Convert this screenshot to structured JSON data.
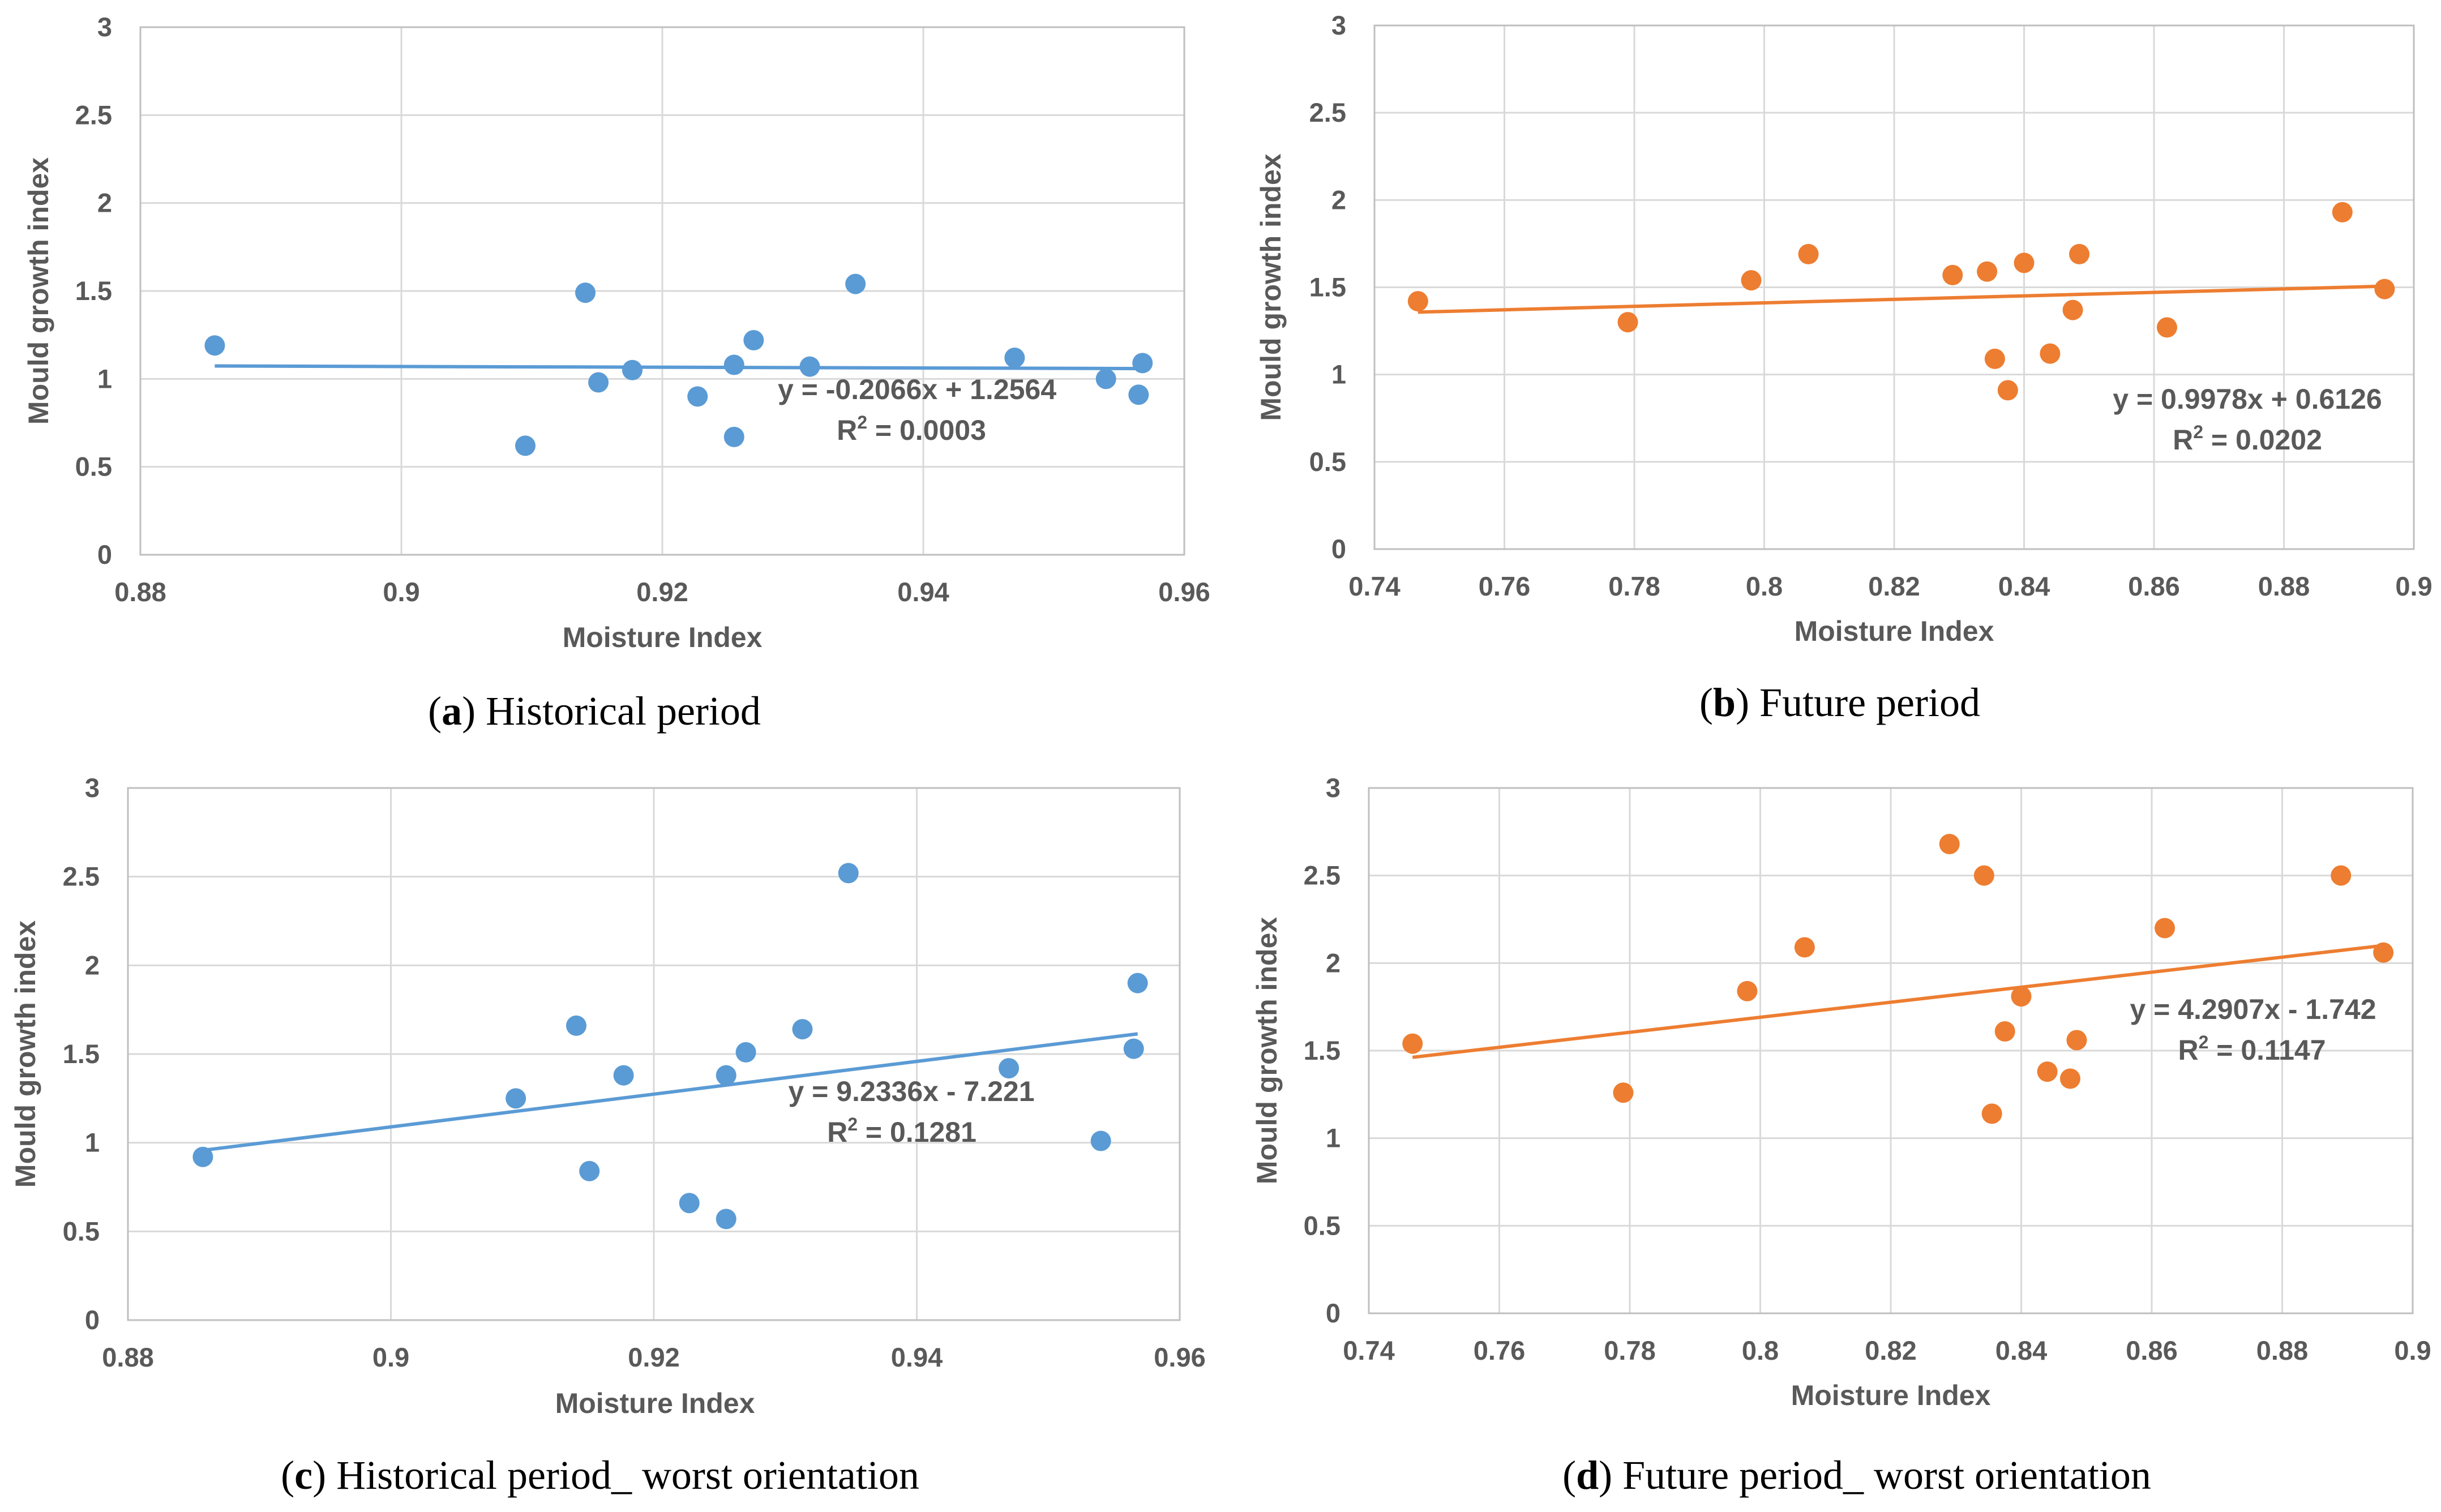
{
  "chart_data": [
    {
      "type": "scatter",
      "panel_id": "a",
      "caption_letter": "a",
      "caption_text": "Historical period",
      "xlabel": "Moisture Index",
      "ylabel": "Mould growth index",
      "xlim": [
        0.88,
        0.96
      ],
      "ylim": [
        0,
        3
      ],
      "xticks": [
        "0.88",
        "0.9",
        "0.92",
        "0.94",
        "0.96"
      ],
      "yticks": [
        "0",
        "0.5",
        "1",
        "1.5",
        "2",
        "2.5",
        "3"
      ],
      "grid": true,
      "color": "#5b9bd5",
      "points": [
        {
          "x": 0.8857,
          "y": 1.19
        },
        {
          "x": 0.9095,
          "y": 0.62
        },
        {
          "x": 0.9141,
          "y": 1.49
        },
        {
          "x": 0.9151,
          "y": 0.98
        },
        {
          "x": 0.9177,
          "y": 1.05
        },
        {
          "x": 0.9227,
          "y": 0.9
        },
        {
          "x": 0.9255,
          "y": 1.08
        },
        {
          "x": 0.9255,
          "y": 0.67
        },
        {
          "x": 0.927,
          "y": 1.22
        },
        {
          "x": 0.9313,
          "y": 1.07
        },
        {
          "x": 0.9348,
          "y": 1.54
        },
        {
          "x": 0.947,
          "y": 1.12
        },
        {
          "x": 0.954,
          "y": 1.0
        },
        {
          "x": 0.9565,
          "y": 0.91
        },
        {
          "x": 0.9568,
          "y": 1.09
        }
      ],
      "trendline": {
        "slope": -0.2066,
        "intercept": 1.2564,
        "x_from": 0.8857,
        "x_to": 0.9568
      },
      "equation": "y = -0.2066x + 1.2564",
      "r2_prefix": "R",
      "r2_sup": "2",
      "r2_value": " = 0.0003"
    },
    {
      "type": "scatter",
      "panel_id": "b",
      "caption_letter": "b",
      "caption_text": "Future period",
      "xlabel": "Moisture Index",
      "ylabel": "Mould growth index",
      "xlim": [
        0.74,
        0.9
      ],
      "ylim": [
        0,
        3
      ],
      "xticks": [
        "0.74",
        "0.76",
        "0.78",
        "0.8",
        "0.82",
        "0.84",
        "0.86",
        "0.88",
        "0.9"
      ],
      "yticks": [
        "0",
        "0.5",
        "1",
        "1.5",
        "2",
        "2.5",
        "3"
      ],
      "grid": true,
      "color": "#ed7d31",
      "points": [
        {
          "x": 0.7467,
          "y": 1.42
        },
        {
          "x": 0.779,
          "y": 1.3
        },
        {
          "x": 0.798,
          "y": 1.54
        },
        {
          "x": 0.8068,
          "y": 1.69
        },
        {
          "x": 0.829,
          "y": 1.57
        },
        {
          "x": 0.8343,
          "y": 1.59
        },
        {
          "x": 0.8355,
          "y": 1.09
        },
        {
          "x": 0.8375,
          "y": 0.91
        },
        {
          "x": 0.84,
          "y": 1.64
        },
        {
          "x": 0.844,
          "y": 1.12
        },
        {
          "x": 0.8475,
          "y": 1.37
        },
        {
          "x": 0.8485,
          "y": 1.69
        },
        {
          "x": 0.862,
          "y": 1.27
        },
        {
          "x": 0.889,
          "y": 1.93
        },
        {
          "x": 0.8955,
          "y": 1.49
        }
      ],
      "trendline": {
        "slope": 0.9978,
        "intercept": 0.6126,
        "x_from": 0.7467,
        "x_to": 0.8955
      },
      "equation": "y = 0.9978x + 0.6126",
      "r2_prefix": "R",
      "r2_sup": "2",
      "r2_value": " = 0.0202"
    },
    {
      "type": "scatter",
      "panel_id": "c",
      "caption_letter": "c",
      "caption_text": "Historical period_ worst orientation",
      "xlabel": "Moisture Index",
      "ylabel": "Mould growth index",
      "xlim": [
        0.88,
        0.96
      ],
      "ylim": [
        0,
        3
      ],
      "xticks": [
        "0.88",
        "0.9",
        "0.92",
        "0.94",
        "0.96"
      ],
      "yticks": [
        "0",
        "0.5",
        "1",
        "1.5",
        "2",
        "2.5",
        "3"
      ],
      "grid": true,
      "color": "#5b9bd5",
      "points": [
        {
          "x": 0.8857,
          "y": 0.92
        },
        {
          "x": 0.9095,
          "y": 1.25
        },
        {
          "x": 0.9141,
          "y": 1.66
        },
        {
          "x": 0.9151,
          "y": 0.84
        },
        {
          "x": 0.9177,
          "y": 1.38
        },
        {
          "x": 0.9227,
          "y": 0.66
        },
        {
          "x": 0.9255,
          "y": 1.38
        },
        {
          "x": 0.9255,
          "y": 0.57
        },
        {
          "x": 0.927,
          "y": 1.51
        },
        {
          "x": 0.9313,
          "y": 1.64
        },
        {
          "x": 0.9348,
          "y": 2.52
        },
        {
          "x": 0.947,
          "y": 1.42
        },
        {
          "x": 0.954,
          "y": 1.01
        },
        {
          "x": 0.9565,
          "y": 1.53
        },
        {
          "x": 0.9568,
          "y": 1.9
        }
      ],
      "trendline": {
        "slope": 9.2336,
        "intercept": -7.221,
        "x_from": 0.8857,
        "x_to": 0.9568
      },
      "equation": "y = 9.2336x - 7.221",
      "r2_prefix": "R",
      "r2_sup": "2",
      "r2_value": " = 0.1281"
    },
    {
      "type": "scatter",
      "panel_id": "d",
      "caption_letter": "d",
      "caption_text": "Future period_ worst orientation",
      "xlabel": "Moisture Index",
      "ylabel": "Mould growth index",
      "xlim": [
        0.74,
        0.9
      ],
      "ylim": [
        0,
        3
      ],
      "xticks": [
        "0.74",
        "0.76",
        "0.78",
        "0.8",
        "0.82",
        "0.84",
        "0.86",
        "0.88",
        "0.9"
      ],
      "yticks": [
        "0",
        "0.5",
        "1",
        "1.5",
        "2",
        "2.5",
        "3"
      ],
      "grid": true,
      "color": "#ed7d31",
      "points": [
        {
          "x": 0.7467,
          "y": 1.54
        },
        {
          "x": 0.779,
          "y": 1.26
        },
        {
          "x": 0.798,
          "y": 1.84
        },
        {
          "x": 0.8068,
          "y": 2.09
        },
        {
          "x": 0.829,
          "y": 2.68
        },
        {
          "x": 0.8343,
          "y": 2.5
        },
        {
          "x": 0.8355,
          "y": 1.14
        },
        {
          "x": 0.8375,
          "y": 1.61
        },
        {
          "x": 0.84,
          "y": 1.81
        },
        {
          "x": 0.844,
          "y": 1.38
        },
        {
          "x": 0.8475,
          "y": 1.34
        },
        {
          "x": 0.8485,
          "y": 1.56
        },
        {
          "x": 0.862,
          "y": 2.2
        },
        {
          "x": 0.889,
          "y": 2.5
        },
        {
          "x": 0.8955,
          "y": 2.06
        }
      ],
      "trendline": {
        "slope": 4.2907,
        "intercept": -1.742,
        "x_from": 0.7467,
        "x_to": 0.8955
      },
      "equation": "y = 4.2907x - 1.742",
      "r2_prefix": "R",
      "r2_sup": "2",
      "r2_value": " = 0.1147"
    }
  ]
}
